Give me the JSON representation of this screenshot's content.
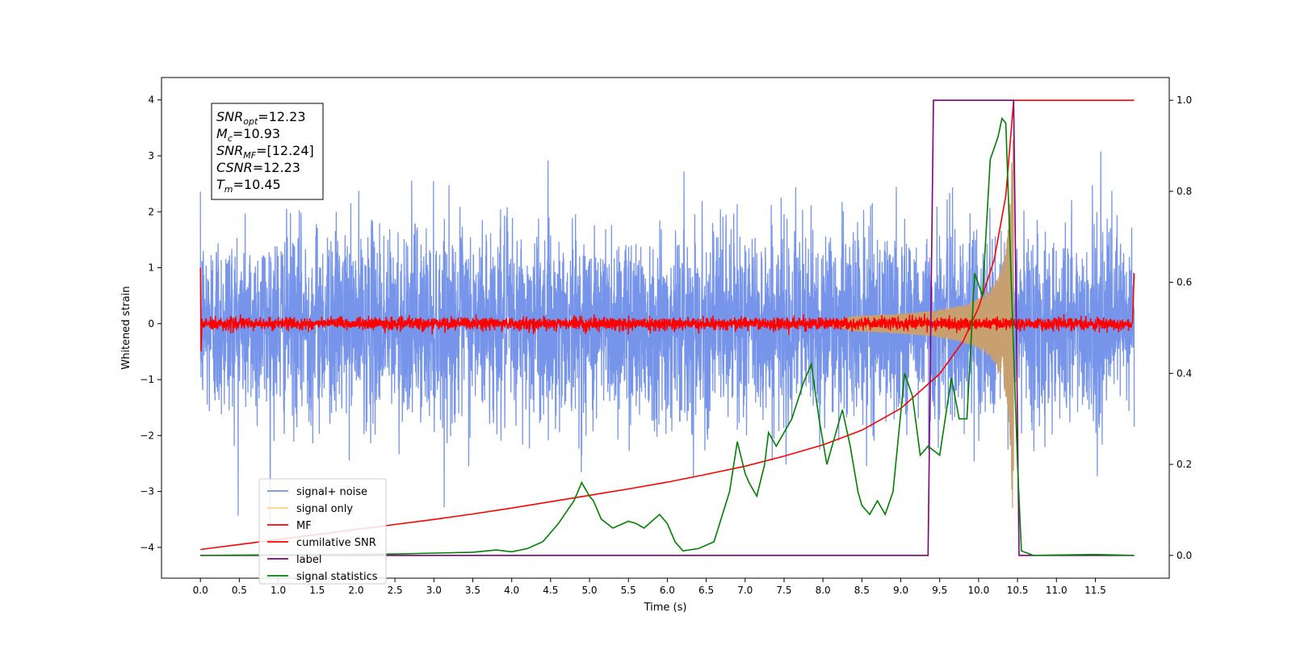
{
  "chart_data": {
    "type": "line",
    "xlabel": "Time (s)",
    "ylabel": "Whitened strain",
    "ylabel_right": "",
    "xlim": [
      -0.5,
      12.45
    ],
    "ylim": [
      -4.55,
      4.4
    ],
    "ylim_right": [
      -0.05,
      1.05
    ],
    "x_ticks": [
      "0.0",
      "0.5",
      "1.0",
      "1.5",
      "2.0",
      "2.5",
      "3.0",
      "3.5",
      "4.0",
      "4.5",
      "5.0",
      "5.5",
      "6.0",
      "6.5",
      "7.0",
      "7.5",
      "8.0",
      "8.5",
      "9.0",
      "9.5",
      "10.0",
      "10.5",
      "11.0",
      "11.5"
    ],
    "y_ticks": [
      "4",
      "3",
      "2",
      "1",
      "0",
      "−1",
      "−2",
      "−3",
      "−4"
    ],
    "y_ticks_right": [
      "1.0",
      "0.8",
      "0.6",
      "0.4",
      "0.2",
      "0.0"
    ],
    "legend": {
      "position": "lower-left",
      "entries": [
        {
          "label": "signal+ noise",
          "color": "#6f8ee8"
        },
        {
          "label": "signal only",
          "color": "#ffd27f"
        },
        {
          "label": "MF",
          "color": "#ff0000"
        },
        {
          "label": "cumilative SNR",
          "color": "#ff0000"
        },
        {
          "label": "label",
          "color": "#800080"
        },
        {
          "label": "signal statistics",
          "color": "#008000"
        }
      ]
    },
    "annotation": {
      "lines": [
        {
          "base": "SNR",
          "sub": "opt",
          "rest": "=12.23"
        },
        {
          "base": "M",
          "sub": "c",
          "rest": "=10.93"
        },
        {
          "base": "SNR",
          "sub": "MF",
          "rest": "=[12.24]"
        },
        {
          "base": "CSNR",
          "sub": "",
          "rest": "=12.23"
        },
        {
          "base": "T",
          "sub": "m",
          "rest": "=10.45"
        }
      ]
    },
    "series": [
      {
        "name": "signal+ noise",
        "axis": "left",
        "kind": "noise",
        "x_range": [
          0.0,
          12.0
        ],
        "envelope_sd": 0.85,
        "peak_range": [
          -4.1,
          4.0
        ],
        "color": "#6f8ee8"
      },
      {
        "name": "signal only",
        "axis": "left",
        "kind": "chirp",
        "x_range": [
          8.0,
          10.45
        ],
        "max_amplitude": 3.3,
        "color": "#c8a070"
      },
      {
        "name": "MF",
        "axis": "left",
        "kind": "matched-filter",
        "x_range": [
          0.0,
          12.0
        ],
        "amplitude": 0.1,
        "start_value": 1.0,
        "end_value": 0.9,
        "color": "#ff0000"
      },
      {
        "name": "cumilative SNR",
        "axis": "right",
        "x": [
          0.0,
          0.5,
          1.0,
          1.5,
          2.0,
          2.5,
          3.0,
          3.5,
          4.0,
          4.5,
          5.0,
          5.5,
          6.0,
          6.5,
          7.0,
          7.5,
          8.0,
          8.5,
          9.0,
          9.5,
          9.8,
          10.0,
          10.2,
          10.35,
          10.45,
          10.5,
          12.0
        ],
        "values": [
          0.013,
          0.024,
          0.035,
          0.046,
          0.057,
          0.068,
          0.079,
          0.091,
          0.104,
          0.118,
          0.132,
          0.146,
          0.161,
          0.178,
          0.196,
          0.218,
          0.243,
          0.275,
          0.323,
          0.399,
          0.47,
          0.545,
          0.65,
          0.79,
          1.0,
          1.0,
          1.0
        ],
        "color": "#ff0000"
      },
      {
        "name": "label",
        "axis": "right",
        "x": [
          0.0,
          9.35,
          9.42,
          10.45,
          10.52,
          12.0
        ],
        "values": [
          0.0,
          0.0,
          1.0,
          1.0,
          0.0,
          0.0
        ],
        "color": "#800080"
      },
      {
        "name": "signal statistics",
        "axis": "right",
        "x": [
          0.0,
          2.5,
          3.0,
          3.5,
          3.8,
          4.0,
          4.2,
          4.4,
          4.6,
          4.8,
          4.9,
          5.0,
          5.05,
          5.15,
          5.3,
          5.5,
          5.6,
          5.7,
          5.9,
          6.0,
          6.1,
          6.2,
          6.4,
          6.6,
          6.8,
          6.9,
          7.0,
          7.05,
          7.15,
          7.25,
          7.3,
          7.4,
          7.6,
          7.75,
          7.85,
          7.95,
          8.05,
          8.15,
          8.25,
          8.35,
          8.45,
          8.5,
          8.6,
          8.7,
          8.8,
          8.9,
          9.05,
          9.15,
          9.25,
          9.35,
          9.5,
          9.65,
          9.75,
          9.85,
          9.95,
          10.05,
          10.15,
          10.25,
          10.3,
          10.35,
          10.42,
          10.5,
          10.55,
          10.7,
          11.5,
          12.0
        ],
        "values": [
          0.0,
          0.003,
          0.005,
          0.007,
          0.012,
          0.008,
          0.015,
          0.03,
          0.07,
          0.12,
          0.16,
          0.13,
          0.12,
          0.08,
          0.06,
          0.075,
          0.07,
          0.06,
          0.09,
          0.07,
          0.03,
          0.01,
          0.015,
          0.03,
          0.14,
          0.25,
          0.18,
          0.16,
          0.13,
          0.2,
          0.27,
          0.24,
          0.3,
          0.38,
          0.42,
          0.3,
          0.2,
          0.26,
          0.32,
          0.24,
          0.14,
          0.11,
          0.09,
          0.12,
          0.09,
          0.14,
          0.4,
          0.35,
          0.22,
          0.24,
          0.22,
          0.39,
          0.3,
          0.3,
          0.62,
          0.57,
          0.87,
          0.92,
          0.96,
          0.95,
          0.6,
          0.2,
          0.01,
          0.0,
          0.002,
          0.0
        ],
        "color": "#008000"
      }
    ]
  }
}
